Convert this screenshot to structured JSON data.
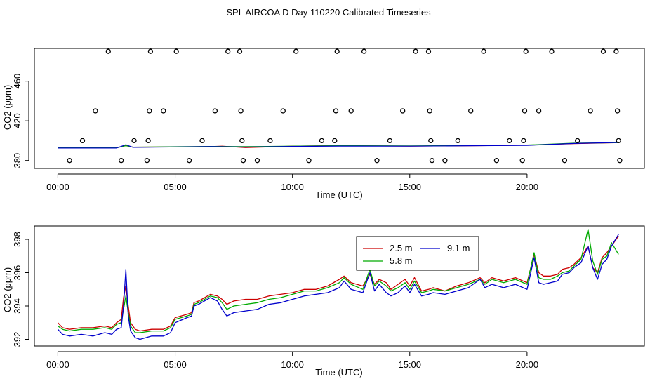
{
  "title": "SPL AIRCOA D  Day 110220  Calibrated Timeseries",
  "chart_data": [
    {
      "type": "scatter",
      "xlabel": "Time (UTC)",
      "ylabel": "CO2 (ppm)",
      "xlim": [
        -1,
        25
      ],
      "ylim": [
        372,
        493
      ],
      "x_ticks": [
        {
          "label": "00:00",
          "value": 0
        },
        {
          "label": "05:00",
          "value": 5
        },
        {
          "label": "10:00",
          "value": 10
        },
        {
          "label": "15:00",
          "value": 15
        },
        {
          "label": "20:00",
          "value": 20
        }
      ],
      "y_ticks": [
        {
          "label": "380",
          "value": 380
        },
        {
          "label": "420",
          "value": 420
        },
        {
          "label": "460",
          "value": 460
        }
      ],
      "points": [
        {
          "x": 0.5,
          "y": 380
        },
        {
          "x": 1.05,
          "y": 400
        },
        {
          "x": 1.6,
          "y": 430
        },
        {
          "x": 2.15,
          "y": 490
        },
        {
          "x": 2.7,
          "y": 380
        },
        {
          "x": 3.25,
          "y": 400
        },
        {
          "x": 3.8,
          "y": 380
        },
        {
          "x": 3.85,
          "y": 400
        },
        {
          "x": 3.9,
          "y": 430
        },
        {
          "x": 3.95,
          "y": 490
        },
        {
          "x": 4.5,
          "y": 430
        },
        {
          "x": 5.05,
          "y": 490
        },
        {
          "x": 5.6,
          "y": 380
        },
        {
          "x": 6.15,
          "y": 400
        },
        {
          "x": 6.7,
          "y": 430
        },
        {
          "x": 7.25,
          "y": 490
        },
        {
          "x": 7.75,
          "y": 490
        },
        {
          "x": 7.8,
          "y": 430
        },
        {
          "x": 7.85,
          "y": 400
        },
        {
          "x": 7.9,
          "y": 380
        },
        {
          "x": 8.5,
          "y": 380
        },
        {
          "x": 9.05,
          "y": 400
        },
        {
          "x": 9.6,
          "y": 430
        },
        {
          "x": 10.15,
          "y": 490
        },
        {
          "x": 10.7,
          "y": 380
        },
        {
          "x": 11.25,
          "y": 400
        },
        {
          "x": 11.8,
          "y": 400
        },
        {
          "x": 11.85,
          "y": 430
        },
        {
          "x": 11.9,
          "y": 490
        },
        {
          "x": 12.5,
          "y": 430
        },
        {
          "x": 13.05,
          "y": 490
        },
        {
          "x": 13.6,
          "y": 380
        },
        {
          "x": 14.15,
          "y": 400
        },
        {
          "x": 14.7,
          "y": 430
        },
        {
          "x": 15.25,
          "y": 490
        },
        {
          "x": 15.8,
          "y": 490
        },
        {
          "x": 15.85,
          "y": 430
        },
        {
          "x": 15.9,
          "y": 400
        },
        {
          "x": 15.95,
          "y": 380
        },
        {
          "x": 16.5,
          "y": 380
        },
        {
          "x": 17.05,
          "y": 400
        },
        {
          "x": 17.6,
          "y": 430
        },
        {
          "x": 18.15,
          "y": 490
        },
        {
          "x": 18.7,
          "y": 380
        },
        {
          "x": 19.25,
          "y": 400
        },
        {
          "x": 19.8,
          "y": 380
        },
        {
          "x": 19.85,
          "y": 400
        },
        {
          "x": 19.9,
          "y": 430
        },
        {
          "x": 19.95,
          "y": 490
        },
        {
          "x": 20.5,
          "y": 430
        },
        {
          "x": 21.05,
          "y": 490
        },
        {
          "x": 21.6,
          "y": 380
        },
        {
          "x": 22.15,
          "y": 400
        },
        {
          "x": 22.7,
          "y": 430
        },
        {
          "x": 23.25,
          "y": 490
        },
        {
          "x": 23.8,
          "y": 490
        },
        {
          "x": 23.85,
          "y": 430
        },
        {
          "x": 23.9,
          "y": 400
        },
        {
          "x": 23.95,
          "y": 380
        }
      ],
      "lines": [
        {
          "color": "#cc0000",
          "x": [
            0,
            2.5,
            2.9,
            3.2,
            6.5,
            7,
            8,
            10,
            12,
            15,
            18,
            20,
            22,
            23.9
          ],
          "y": [
            393,
            393,
            395,
            393.5,
            394,
            394.5,
            393,
            394.5,
            395,
            394.5,
            395,
            395.5,
            397,
            398
          ]
        },
        {
          "color": "#00aa00",
          "x": [
            0,
            2.5,
            2.9,
            3.2,
            6.5,
            8,
            10,
            12,
            15,
            18,
            20,
            22,
            23.9
          ],
          "y": [
            392.8,
            392.8,
            395,
            393.5,
            394.2,
            394,
            394.5,
            395,
            394.8,
            395.2,
            395.6,
            397.5,
            398
          ]
        },
        {
          "color": "#0000cc",
          "x": [
            0,
            2.5,
            2.9,
            3.2,
            6.5,
            8,
            10,
            12,
            15,
            18,
            20,
            22,
            23.9
          ],
          "y": [
            392.6,
            392.6,
            396,
            393.3,
            394,
            393.6,
            394.2,
            394.6,
            394.5,
            395,
            395.3,
            397.2,
            398.2
          ]
        }
      ]
    },
    {
      "type": "line",
      "xlabel": "Time (UTC)",
      "ylabel": "CO2 (ppm)",
      "xlim": [
        -1,
        25
      ],
      "ylim": [
        391.6,
        398.8
      ],
      "legend_position": "top-center",
      "x_ticks": [
        {
          "label": "00:00",
          "value": 0
        },
        {
          "label": "05:00",
          "value": 5
        },
        {
          "label": "10:00",
          "value": 10
        },
        {
          "label": "15:00",
          "value": 15
        },
        {
          "label": "20:00",
          "value": 20
        }
      ],
      "y_ticks": [
        {
          "label": "392",
          "value": 392
        },
        {
          "label": "394",
          "value": 394
        },
        {
          "label": "396",
          "value": 396
        },
        {
          "label": "398",
          "value": 398
        }
      ],
      "series": [
        {
          "name": "2.5 m",
          "color": "#cc0000",
          "x": [
            0,
            0.2,
            0.5,
            1,
            1.5,
            2,
            2.3,
            2.5,
            2.7,
            2.8,
            2.9,
            3,
            3.1,
            3.3,
            3.5,
            4,
            4.5,
            4.8,
            5,
            5.5,
            5.7,
            5.8,
            6,
            6.5,
            6.8,
            7,
            7.2,
            7.5,
            8,
            8.5,
            9,
            9.5,
            10,
            10.5,
            11,
            11.5,
            12,
            12.2,
            12.5,
            13,
            13.3,
            13.5,
            13.7,
            14,
            14.2,
            14.5,
            14.8,
            15,
            15.2,
            15.5,
            15.8,
            16,
            16.5,
            17,
            17.5,
            18,
            18.2,
            18.5,
            19,
            19.5,
            20,
            20.3,
            20.5,
            20.7,
            21,
            21.3,
            21.5,
            21.8,
            22,
            22.3,
            22.6,
            22.8,
            23,
            23.2,
            23.4,
            23.6,
            23.9
          ],
          "y": [
            393.0,
            392.7,
            392.6,
            392.7,
            392.7,
            392.8,
            392.7,
            393.0,
            393.2,
            394.5,
            395.2,
            394.0,
            393.0,
            392.6,
            392.5,
            392.6,
            392.6,
            392.8,
            393.3,
            393.5,
            393.6,
            394.2,
            394.3,
            394.7,
            394.6,
            394.4,
            394.1,
            394.3,
            394.4,
            394.4,
            394.6,
            394.7,
            394.8,
            395.0,
            395.0,
            395.2,
            395.6,
            395.8,
            395.4,
            395.2,
            395.9,
            395.3,
            395.6,
            395.4,
            395.0,
            395.3,
            395.6,
            395.2,
            395.7,
            394.9,
            395.0,
            395.1,
            394.9,
            395.2,
            395.4,
            395.7,
            395.4,
            395.7,
            395.5,
            395.7,
            395.4,
            397.1,
            396.0,
            395.8,
            395.8,
            395.9,
            396.2,
            396.3,
            396.5,
            396.9,
            397.6,
            396.3,
            396.0,
            396.9,
            397.2,
            397.6,
            398.2
          ]
        },
        {
          "name": "5.8 m",
          "color": "#00aa00",
          "x": [
            0,
            0.2,
            0.5,
            1,
            1.5,
            2,
            2.3,
            2.5,
            2.7,
            2.8,
            2.9,
            3,
            3.1,
            3.3,
            3.5,
            4,
            4.5,
            4.8,
            5,
            5.5,
            5.7,
            5.8,
            6,
            6.5,
            6.8,
            7,
            7.2,
            7.5,
            8,
            8.5,
            9,
            9.5,
            10,
            10.5,
            11,
            11.5,
            12,
            12.2,
            12.5,
            13,
            13.3,
            13.5,
            13.7,
            14,
            14.2,
            14.5,
            14.8,
            15,
            15.2,
            15.5,
            15.8,
            16,
            16.5,
            17,
            17.5,
            18,
            18.2,
            18.5,
            19,
            19.5,
            20,
            20.3,
            20.5,
            20.7,
            21,
            21.3,
            21.5,
            21.8,
            22,
            22.3,
            22.6,
            22.8,
            23,
            23.2,
            23.4,
            23.6,
            23.9
          ],
          "y": [
            392.8,
            392.6,
            392.5,
            392.6,
            392.6,
            392.7,
            392.6,
            392.9,
            393.0,
            393.8,
            394.6,
            393.6,
            392.8,
            392.4,
            392.4,
            392.5,
            392.5,
            392.7,
            393.2,
            393.4,
            393.5,
            394.1,
            394.2,
            394.6,
            394.5,
            394.2,
            393.8,
            394.0,
            394.1,
            394.2,
            394.4,
            394.5,
            394.7,
            394.9,
            394.9,
            395.1,
            395.4,
            395.7,
            395.3,
            395.0,
            396.2,
            395.2,
            395.5,
            395.2,
            394.9,
            395.1,
            395.4,
            395.0,
            395.5,
            394.8,
            394.9,
            395.0,
            394.9,
            395.1,
            395.3,
            395.6,
            395.3,
            395.6,
            395.4,
            395.6,
            395.3,
            397.2,
            395.7,
            395.6,
            395.6,
            395.8,
            396.0,
            396.1,
            396.4,
            396.8,
            398.6,
            396.7,
            395.9,
            396.8,
            397.0,
            397.8,
            397.1
          ]
        },
        {
          "name": "9.1 m",
          "color": "#0000cc",
          "x": [
            0,
            0.2,
            0.5,
            1,
            1.5,
            2,
            2.3,
            2.5,
            2.7,
            2.8,
            2.9,
            3,
            3.1,
            3.3,
            3.5,
            4,
            4.5,
            4.8,
            5,
            5.5,
            5.7,
            5.8,
            6,
            6.5,
            6.8,
            7,
            7.2,
            7.5,
            8,
            8.5,
            9,
            9.5,
            10,
            10.5,
            11,
            11.5,
            12,
            12.2,
            12.5,
            13,
            13.3,
            13.5,
            13.7,
            14,
            14.2,
            14.5,
            14.8,
            15,
            15.2,
            15.5,
            15.8,
            16,
            16.5,
            17,
            17.5,
            18,
            18.2,
            18.5,
            19,
            19.5,
            20,
            20.3,
            20.5,
            20.7,
            21,
            21.3,
            21.5,
            21.8,
            22,
            22.3,
            22.6,
            22.8,
            23,
            23.2,
            23.4,
            23.6,
            23.9
          ],
          "y": [
            392.6,
            392.3,
            392.2,
            392.3,
            392.2,
            392.4,
            392.3,
            392.6,
            392.7,
            394.0,
            396.2,
            393.4,
            392.5,
            392.1,
            392.0,
            392.2,
            392.2,
            392.4,
            393.0,
            393.3,
            393.4,
            394.0,
            394.1,
            394.5,
            394.3,
            393.8,
            393.4,
            393.6,
            393.7,
            393.8,
            394.1,
            394.2,
            394.4,
            394.6,
            394.7,
            394.8,
            395.1,
            395.5,
            395.0,
            394.8,
            396.0,
            394.9,
            395.3,
            394.8,
            394.6,
            394.8,
            395.2,
            394.8,
            395.3,
            394.6,
            394.7,
            394.8,
            394.7,
            394.9,
            395.1,
            395.6,
            395.1,
            395.3,
            395.1,
            395.3,
            395.0,
            396.9,
            395.4,
            395.3,
            395.4,
            395.5,
            395.9,
            396.0,
            396.3,
            396.6,
            397.6,
            396.3,
            395.6,
            396.5,
            396.8,
            397.6,
            398.3
          ]
        }
      ]
    }
  ]
}
